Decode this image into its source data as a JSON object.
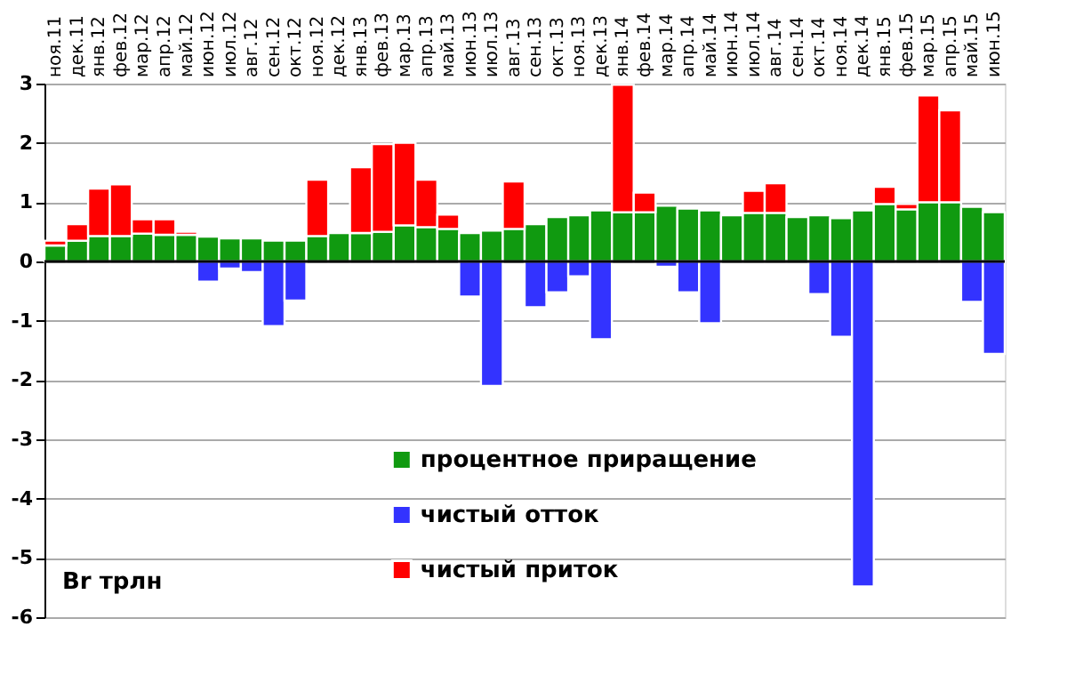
{
  "chart_data": {
    "type": "bar",
    "stacked": true,
    "categories": [
      "ноя.11",
      "дек.11",
      "янв.12",
      "фев.12",
      "мар.12",
      "апр.12",
      "май.12",
      "июн.12",
      "июл.12",
      "авг.12",
      "сен.12",
      "окт.12",
      "ноя.12",
      "дек.12",
      "янв.13",
      "фев.13",
      "мар.13",
      "апр.13",
      "май.13",
      "июн.13",
      "июл.13",
      "авг.13",
      "сен.13",
      "окт.13",
      "ноя.13",
      "дек.13",
      "янв.14",
      "фев.14",
      "мар.14",
      "апр.14",
      "май.14",
      "июн.14",
      "июл.14",
      "авг.14",
      "сен.14",
      "окт.14",
      "ноя.14",
      "дек.14",
      "янв.15",
      "фев.15",
      "мар.15",
      "апр.15",
      "май.15",
      "июн.15"
    ],
    "series": [
      {
        "name": "процентное приращение",
        "color": "#109a10",
        "values": [
          0.27,
          0.35,
          0.43,
          0.43,
          0.47,
          0.45,
          0.45,
          0.42,
          0.39,
          0.39,
          0.35,
          0.35,
          0.43,
          0.48,
          0.48,
          0.5,
          0.61,
          0.58,
          0.55,
          0.48,
          0.52,
          0.55,
          0.63,
          0.75,
          0.78,
          0.86,
          0.83,
          0.83,
          0.94,
          0.89,
          0.86,
          0.78,
          0.82,
          0.82,
          0.75,
          0.78,
          0.73,
          0.86,
          0.97,
          0.88,
          1.0,
          1.0,
          0.92,
          0.83
        ]
      },
      {
        "name": "чистый отток",
        "color": "#3333ff",
        "values": [
          null,
          null,
          null,
          null,
          null,
          null,
          null,
          -0.34,
          -0.12,
          -0.18,
          -1.09,
          -0.66,
          null,
          null,
          null,
          null,
          null,
          null,
          null,
          -0.59,
          -2.1,
          null,
          -0.77,
          -0.52,
          -0.25,
          -1.31,
          null,
          null,
          -0.09,
          -0.52,
          -1.04,
          null,
          null,
          null,
          null,
          -0.55,
          -1.27,
          -5.48,
          null,
          null,
          null,
          null,
          -0.68,
          -1.56
        ]
      },
      {
        "name": "чистый приток",
        "color": "#ff0000",
        "values": [
          0.08,
          0.28,
          0.8,
          0.87,
          0.24,
          0.26,
          0.05,
          null,
          null,
          null,
          null,
          null,
          0.95,
          null,
          1.11,
          1.48,
          1.39,
          0.8,
          0.24,
          null,
          null,
          0.8,
          null,
          null,
          null,
          null,
          2.15,
          0.33,
          null,
          null,
          null,
          null,
          0.37,
          0.5,
          null,
          null,
          null,
          null,
          0.29,
          0.09,
          1.8,
          1.55,
          null,
          null
        ]
      }
    ],
    "ylim": [
      -6,
      3
    ],
    "yticks": [
      -6,
      -5,
      -4,
      -3,
      -2,
      -1,
      0,
      1,
      2,
      3
    ],
    "grid": "y",
    "legend": "bottom",
    "annotations": [
      "Br трлн"
    ]
  }
}
